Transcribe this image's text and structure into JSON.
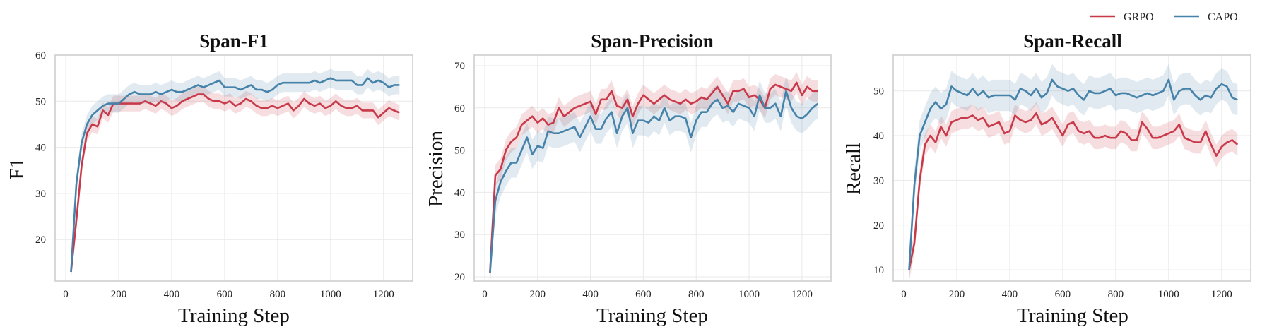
{
  "legend": [
    {
      "name": "GRPO",
      "color": "#c8394a"
    },
    {
      "name": "CAPO",
      "color": "#4682a9"
    }
  ],
  "chart_data": [
    {
      "type": "line",
      "title": "Span-F1",
      "xlabel": "Training Step",
      "ylabel": "F1",
      "xlim": [
        -40,
        1310
      ],
      "ylim": [
        11,
        60
      ],
      "xticks": [
        0,
        200,
        400,
        600,
        800,
        1000,
        1200
      ],
      "yticks": [
        20,
        30,
        40,
        50,
        60
      ],
      "grid": true,
      "x": [
        20,
        40,
        60,
        80,
        100,
        120,
        140,
        160,
        180,
        200,
        220,
        240,
        260,
        280,
        300,
        320,
        340,
        360,
        380,
        400,
        420,
        440,
        460,
        480,
        500,
        520,
        540,
        560,
        580,
        600,
        620,
        640,
        660,
        680,
        700,
        720,
        740,
        760,
        780,
        800,
        820,
        840,
        860,
        880,
        900,
        920,
        940,
        960,
        980,
        1000,
        1020,
        1040,
        1060,
        1080,
        1100,
        1120,
        1140,
        1160,
        1180,
        1200,
        1220,
        1240,
        1260
      ],
      "series": [
        {
          "name": "GRPO",
          "color": "#c8394a",
          "band": 1.7,
          "values": [
            13,
            24,
            36,
            43,
            45,
            44.5,
            48,
            47,
            49.5,
            49.5,
            49.5,
            49.5,
            49.5,
            49.5,
            50,
            49.5,
            49,
            50,
            49.5,
            48.5,
            49,
            50,
            50.5,
            51,
            51.5,
            51.5,
            50.5,
            50,
            50,
            49.5,
            50,
            49,
            49.5,
            50.5,
            50,
            49,
            48.5,
            48.5,
            49,
            48.5,
            49,
            49.5,
            48,
            49,
            50.5,
            49.5,
            49,
            49.5,
            48.5,
            49,
            50,
            49,
            48.5,
            48.5,
            49,
            48,
            48,
            48,
            46.5,
            47.5,
            48.5,
            48,
            47.5
          ]
        },
        {
          "name": "CAPO",
          "color": "#4682a9",
          "band": 2.0,
          "values": [
            13,
            32,
            41,
            45,
            47,
            48,
            49,
            49.5,
            49.5,
            49.5,
            50.5,
            51.5,
            52,
            51.5,
            51.5,
            51.5,
            52,
            51.5,
            52,
            52.5,
            52,
            52,
            52.5,
            53,
            53.5,
            53,
            53.5,
            54,
            54.5,
            53,
            53,
            53,
            52.5,
            53,
            53.5,
            52.5,
            52.5,
            52,
            52.5,
            53.5,
            54,
            54,
            54,
            54,
            54,
            54,
            54.5,
            54,
            54.5,
            55,
            54.5,
            54.5,
            54.5,
            54.5,
            53.5,
            53.5,
            55,
            54,
            54.5,
            54,
            53,
            53.5,
            53.5
          ]
        }
      ]
    },
    {
      "type": "line",
      "title": "Span-Precision",
      "xlabel": "Training Step",
      "ylabel": "Precision",
      "xlim": [
        -40,
        1310
      ],
      "ylim": [
        19,
        72.5
      ],
      "xticks": [
        0,
        200,
        400,
        600,
        800,
        1000,
        1200
      ],
      "yticks": [
        20,
        30,
        40,
        50,
        60,
        70
      ],
      "grid": true,
      "x": [
        20,
        40,
        60,
        80,
        100,
        120,
        140,
        160,
        180,
        200,
        220,
        240,
        260,
        280,
        300,
        320,
        340,
        360,
        380,
        400,
        420,
        440,
        460,
        480,
        500,
        520,
        540,
        560,
        580,
        600,
        620,
        640,
        660,
        680,
        700,
        720,
        740,
        760,
        780,
        800,
        820,
        840,
        860,
        880,
        900,
        920,
        940,
        960,
        980,
        1000,
        1020,
        1040,
        1060,
        1080,
        1100,
        1120,
        1140,
        1160,
        1180,
        1200,
        1220,
        1240,
        1260
      ],
      "series": [
        {
          "name": "GRPO",
          "color": "#c8394a",
          "band": 2.5,
          "values": [
            21,
            44,
            45.5,
            50,
            52,
            53,
            56,
            57,
            58,
            56.5,
            57.5,
            56,
            56.5,
            60,
            58,
            59,
            60,
            60.5,
            61,
            61.5,
            58.5,
            62,
            62,
            64,
            60.5,
            60,
            62,
            58,
            61,
            63,
            62,
            61,
            62,
            63,
            62,
            61.5,
            61,
            62,
            61,
            61.5,
            62.5,
            62,
            63.5,
            65,
            63,
            61,
            64,
            64,
            64.5,
            62.5,
            63,
            62,
            60,
            64.5,
            65.5,
            65,
            64.5,
            64,
            66,
            63,
            65,
            64,
            64
          ]
        },
        {
          "name": "CAPO",
          "color": "#4682a9",
          "band": 3.5,
          "values": [
            21,
            38,
            42.5,
            45,
            47,
            47,
            50,
            53,
            49,
            51,
            50.5,
            54.5,
            54,
            54,
            54.5,
            55,
            55.5,
            53,
            55.5,
            58,
            55,
            55,
            57.5,
            59,
            54,
            58,
            60,
            54,
            57,
            57,
            56.5,
            58,
            57,
            60,
            57,
            58,
            58,
            57.5,
            53,
            57,
            59,
            59,
            61,
            62,
            60,
            60.5,
            59,
            61,
            60.5,
            60,
            58,
            63,
            60,
            60,
            61,
            58,
            64,
            60,
            58,
            57.5,
            58.5,
            60,
            61
          ]
        }
      ]
    },
    {
      "type": "line",
      "title": "Span-Recall",
      "xlabel": "Training Step",
      "ylabel": "Recall",
      "xlim": [
        -40,
        1310
      ],
      "ylim": [
        7.5,
        58
      ],
      "xticks": [
        0,
        200,
        400,
        600,
        800,
        1000,
        1200
      ],
      "yticks": [
        10,
        20,
        30,
        40,
        50
      ],
      "grid": true,
      "x": [
        20,
        40,
        60,
        80,
        100,
        120,
        140,
        160,
        180,
        200,
        220,
        240,
        260,
        280,
        300,
        320,
        340,
        360,
        380,
        400,
        420,
        440,
        460,
        480,
        500,
        520,
        540,
        560,
        580,
        600,
        620,
        640,
        660,
        680,
        700,
        720,
        740,
        760,
        780,
        800,
        820,
        840,
        860,
        880,
        900,
        920,
        940,
        960,
        980,
        1000,
        1020,
        1040,
        1060,
        1080,
        1100,
        1120,
        1140,
        1160,
        1180,
        1200,
        1220,
        1240,
        1260
      ],
      "series": [
        {
          "name": "GRPO",
          "color": "#c8394a",
          "band": 2.5,
          "values": [
            10,
            16,
            30,
            38,
            40,
            38.5,
            42,
            40,
            43,
            43.5,
            44,
            44,
            44.5,
            43.5,
            44,
            42,
            42.5,
            43,
            40.5,
            41,
            44.5,
            43.5,
            43,
            43.5,
            45,
            42.5,
            43,
            44,
            42,
            40,
            42.5,
            43,
            41,
            40.5,
            41,
            39.5,
            39.5,
            40,
            39.5,
            39.5,
            41,
            40.5,
            39,
            39,
            43,
            41.5,
            39.5,
            39.5,
            40,
            40.5,
            41,
            42.5,
            39.5,
            39,
            38.5,
            38.5,
            41,
            38,
            35.5,
            37.5,
            38.5,
            39,
            38
          ]
        },
        {
          "name": "CAPO",
          "color": "#4682a9",
          "band": 3.5,
          "values": [
            10,
            29,
            40,
            43,
            46,
            47.5,
            46,
            47,
            51,
            50,
            49.5,
            49,
            50.5,
            49,
            50,
            48.5,
            49,
            49,
            49,
            49,
            48,
            50.5,
            50,
            49,
            50.5,
            48.5,
            49.5,
            52.5,
            51,
            50.5,
            50,
            50.5,
            49,
            48,
            50,
            49.5,
            49.5,
            50,
            50.5,
            49,
            49.5,
            49.5,
            49,
            48.5,
            49,
            49.5,
            49,
            49.5,
            50,
            52.5,
            48,
            50,
            50.5,
            50.5,
            49,
            48,
            49,
            48.5,
            50.5,
            51.5,
            51,
            48.5,
            48
          ]
        }
      ]
    }
  ]
}
